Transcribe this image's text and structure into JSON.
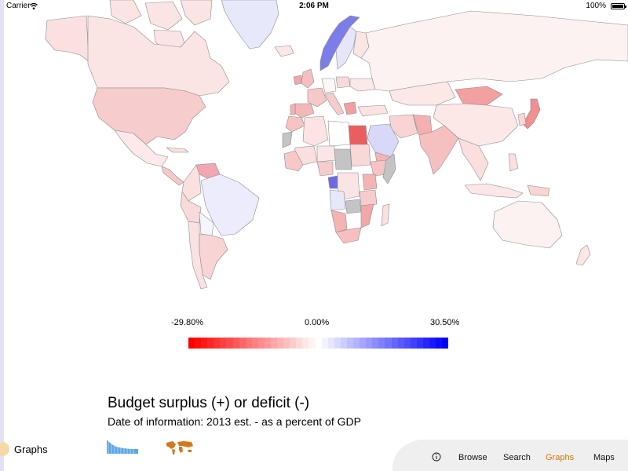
{
  "status_bar": {
    "carrier": "Carrier",
    "time": "2:06 PM",
    "battery": "100%"
  },
  "legend": {
    "min_label": "-29.80%",
    "mid_label": "0.00%",
    "max_label": "30.50%",
    "min_color": "#ff0000",
    "mid_color": "#ffffff",
    "max_color": "#0000ff",
    "steps": 41
  },
  "graph": {
    "title": "Budget surplus (+) or deficit (-)",
    "subtitle": "Date of information: 2013 est. - as a percent of GDP"
  },
  "graphs_link": {
    "label": "Graphs"
  },
  "nav": {
    "info_icon": "info-icon",
    "browse": "Browse",
    "search": "Search",
    "graphs": "Graphs",
    "maps": "Maps",
    "active_color": "#d3780f"
  },
  "colors": {
    "no_data": "#c4c4c4",
    "border": "#8c8c8c",
    "thumb_bars": "#5aa6e6",
    "thumb_map": "#d1781b"
  }
}
